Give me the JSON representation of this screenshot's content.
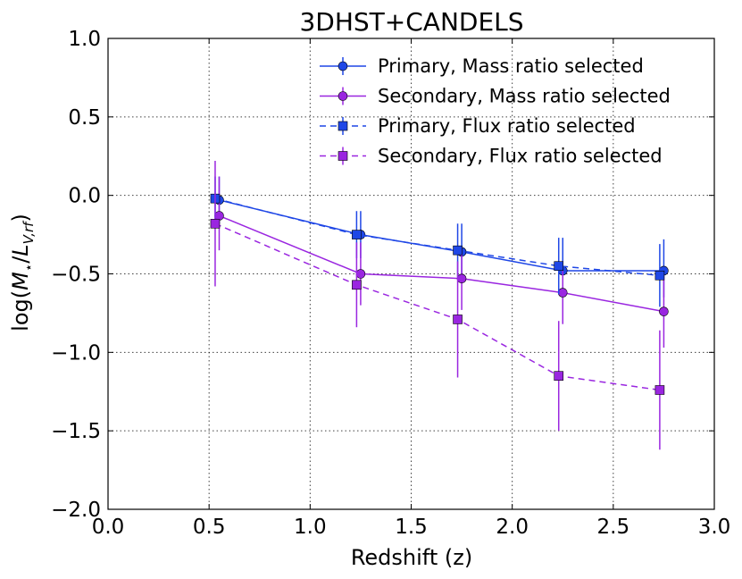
{
  "chart_data": {
    "type": "line",
    "title": "3DHST+CANDELS",
    "xlabel": "Redshift (z)",
    "ylabel": "log(M_⋆/L_V,rf)",
    "ylabel_parts": {
      "prefix": "log(",
      "symbol": "M",
      "star": "⋆",
      "slash": "/",
      "symbol2": "L",
      "subscript": "V,rf",
      "suffix": ")"
    },
    "xlim": [
      0.0,
      3.0
    ],
    "ylim": [
      -2.0,
      1.0
    ],
    "x_ticks": [
      "0.0",
      "0.5",
      "1.0",
      "1.5",
      "2.0",
      "2.5",
      "3.0"
    ],
    "y_ticks": [
      "−2.0",
      "−1.5",
      "−1.0",
      "−0.5",
      "0.0",
      "0.5",
      "1.0"
    ],
    "x_tick_values": [
      0.0,
      0.5,
      1.0,
      1.5,
      2.0,
      2.5,
      3.0
    ],
    "y_tick_values": [
      -2.0,
      -1.5,
      -1.0,
      -0.5,
      0.0,
      0.5,
      1.0
    ],
    "grid": true,
    "legend_position": "top-right",
    "series": [
      {
        "name": "Primary, Mass ratio selected",
        "color": "#1f47e6",
        "marker": "circle",
        "linestyle": "solid",
        "x": [
          0.55,
          1.25,
          1.75,
          2.25,
          2.75
        ],
        "y": [
          -0.03,
          -0.25,
          -0.36,
          -0.48,
          -0.48
        ],
        "yerr_low": [
          0.15,
          0.15,
          0.18,
          0.17,
          0.17
        ],
        "yerr_high": [
          0.15,
          0.15,
          0.18,
          0.21,
          0.2
        ]
      },
      {
        "name": "Secondary, Mass ratio selected",
        "color": "#9a26e0",
        "marker": "circle",
        "linestyle": "solid",
        "x": [
          0.55,
          1.25,
          1.75,
          2.25,
          2.75
        ],
        "y": [
          -0.13,
          -0.5,
          -0.53,
          -0.62,
          -0.74
        ],
        "yerr_low": [
          0.22,
          0.2,
          0.2,
          0.2,
          0.23
        ],
        "yerr_high": [
          0.25,
          0.2,
          0.2,
          0.2,
          0.23
        ]
      },
      {
        "name": "Primary, Flux ratio selected",
        "color": "#1f47e6",
        "marker": "square",
        "linestyle": "dashed",
        "x": [
          0.53,
          1.23,
          1.73,
          2.23,
          2.73
        ],
        "y": [
          -0.02,
          -0.25,
          -0.35,
          -0.45,
          -0.51
        ],
        "yerr_low": [
          0.14,
          0.15,
          0.17,
          0.18,
          0.2
        ],
        "yerr_high": [
          0.14,
          0.15,
          0.17,
          0.18,
          0.2
        ]
      },
      {
        "name": "Secondary, Flux ratio selected",
        "color": "#9a26e0",
        "marker": "square",
        "linestyle": "dashed",
        "x": [
          0.53,
          1.23,
          1.73,
          2.23,
          2.73
        ],
        "y": [
          -0.18,
          -0.57,
          -0.79,
          -1.15,
          -1.24
        ],
        "yerr_low": [
          0.4,
          0.27,
          0.37,
          0.35,
          0.38
        ],
        "yerr_high": [
          0.4,
          0.27,
          0.37,
          0.35,
          0.38
        ]
      }
    ]
  }
}
